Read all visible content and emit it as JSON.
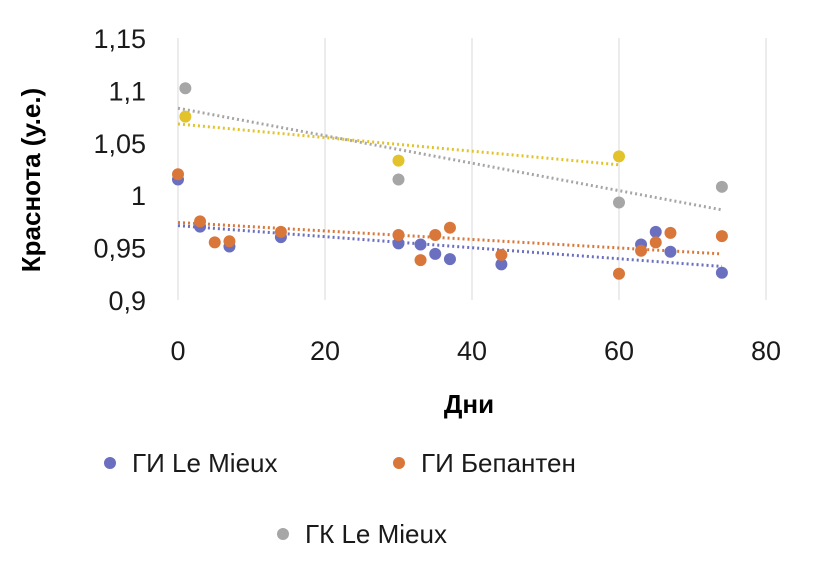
{
  "chart_data": {
    "type": "scatter",
    "title": "",
    "xlabel": "Дни",
    "ylabel": "Краснота (у.е.)",
    "xlim": [
      0,
      80
    ],
    "ylim": [
      0.9,
      1.15
    ],
    "x_ticks": [
      "0",
      "20",
      "40",
      "60",
      "80"
    ],
    "y_ticks": [
      "0,9",
      "0,95",
      "1",
      "1,05",
      "1,1",
      "1,15"
    ],
    "grid": "vertical",
    "legend_position": "bottom",
    "trendlines": "linear, dotted",
    "series": [
      {
        "name": "ГИ Le Mieux",
        "color": "#6b6fc0",
        "points": [
          [
            0,
            1.015
          ],
          [
            3,
            0.97
          ],
          [
            7,
            0.951
          ],
          [
            14,
            0.96
          ],
          [
            30,
            0.954
          ],
          [
            33,
            0.953
          ],
          [
            35,
            0.944
          ],
          [
            37,
            0.939
          ],
          [
            44,
            0.934
          ],
          [
            63,
            0.953
          ],
          [
            65,
            0.965
          ],
          [
            67,
            0.946
          ],
          [
            74,
            0.926
          ]
        ],
        "trend": [
          [
            0,
            0.971
          ],
          [
            74,
            0.932
          ]
        ]
      },
      {
        "name": "ГИ Бепантен",
        "color": "#d9773a",
        "points": [
          [
            0,
            1.02
          ],
          [
            3,
            0.975
          ],
          [
            5,
            0.955
          ],
          [
            7,
            0.956
          ],
          [
            14,
            0.965
          ],
          [
            30,
            0.962
          ],
          [
            33,
            0.938
          ],
          [
            35,
            0.962
          ],
          [
            37,
            0.969
          ],
          [
            44,
            0.943
          ],
          [
            60,
            0.925
          ],
          [
            63,
            0.947
          ],
          [
            65,
            0.955
          ],
          [
            67,
            0.964
          ],
          [
            74,
            0.961
          ]
        ],
        "trend": [
          [
            0,
            0.974
          ],
          [
            74,
            0.944
          ]
        ]
      },
      {
        "name": "ГК Le Mieux",
        "color": "#a6a6a6",
        "points": [
          [
            1,
            1.102
          ],
          [
            30,
            1.015
          ],
          [
            60,
            0.993
          ],
          [
            74,
            1.008
          ]
        ],
        "trend": [
          [
            0,
            1.083
          ],
          [
            74,
            0.986
          ]
        ]
      },
      {
        "color": "#e2c32b",
        "points": [
          [
            1,
            1.075
          ],
          [
            30,
            1.033
          ],
          [
            60,
            1.037
          ]
        ],
        "trend": [
          [
            0,
            1.068
          ],
          [
            60,
            1.029
          ]
        ]
      }
    ]
  }
}
